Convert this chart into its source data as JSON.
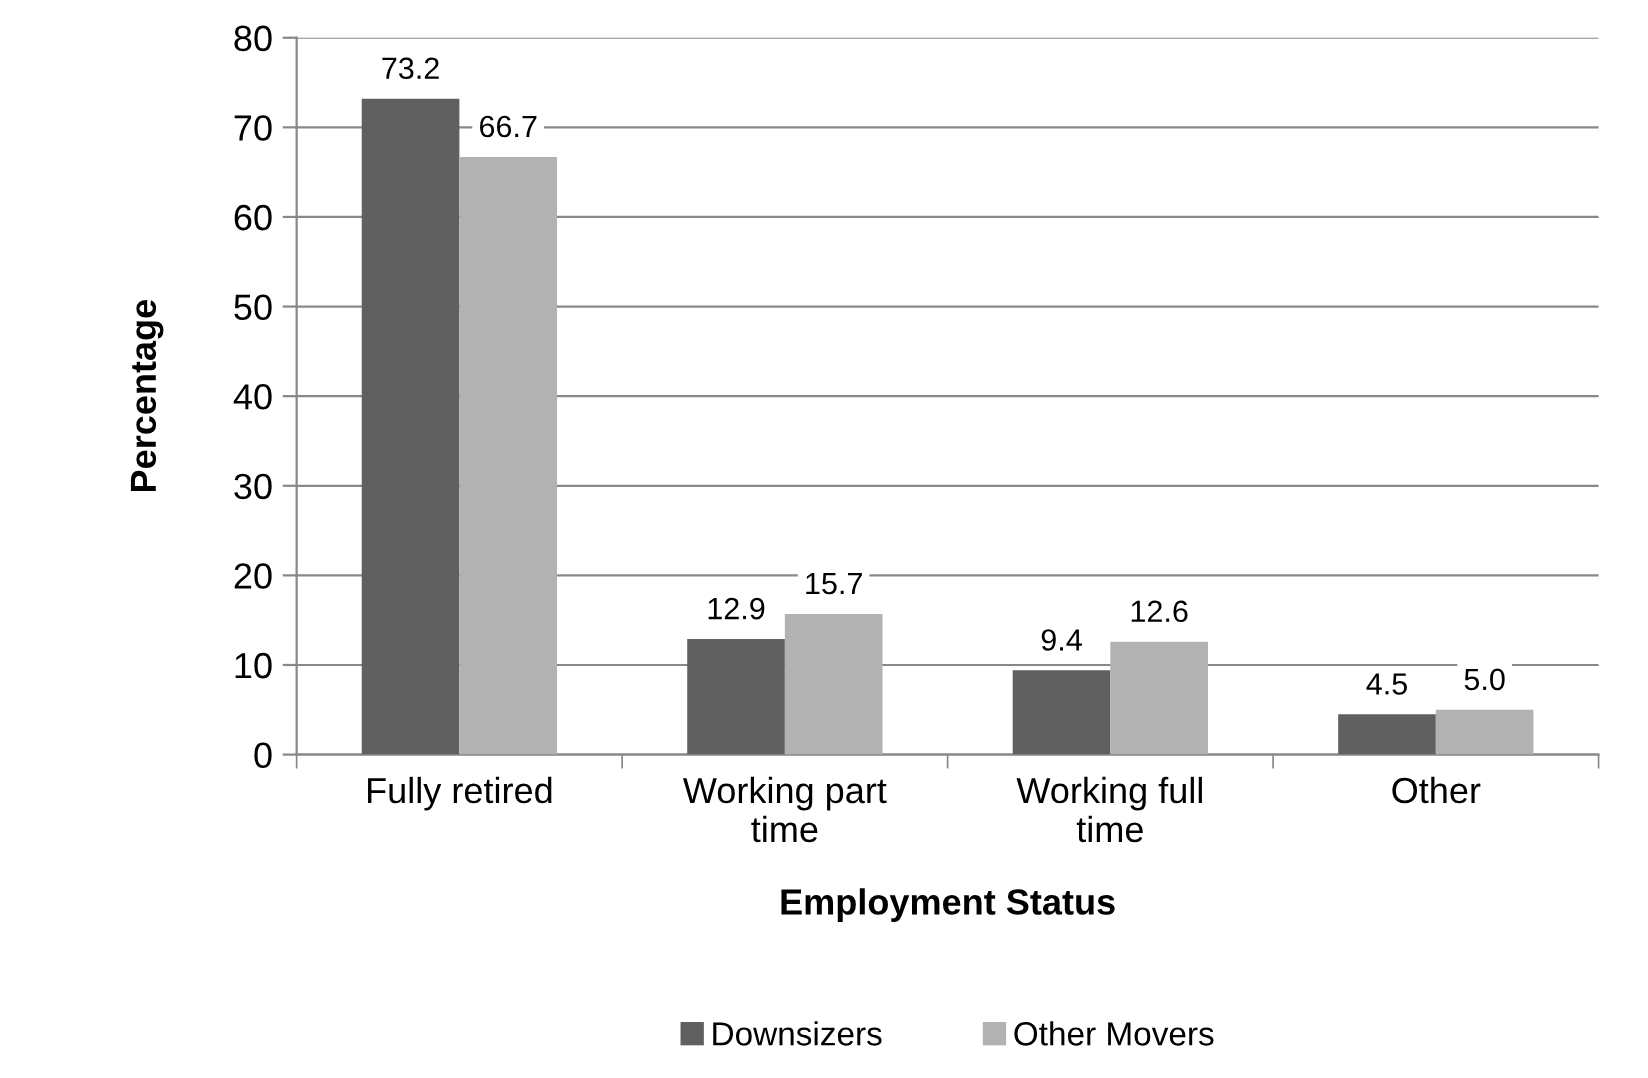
{
  "chart_data": {
    "type": "bar",
    "xlabel": "Employment Status",
    "ylabel": "Percentage",
    "categories": [
      "Fully retired",
      "Working part\ntime",
      "Working full\ntime",
      "Other"
    ],
    "series": [
      {
        "name": "Downsizers",
        "color": "#606060",
        "values": [
          73.2,
          12.9,
          9.4,
          4.5
        ],
        "value_labels": [
          "73.2",
          "12.9",
          "9.4",
          "4.5"
        ]
      },
      {
        "name": "Other Movers",
        "color": "#b2b2b2",
        "values": [
          66.7,
          15.7,
          12.6,
          5.0
        ],
        "value_labels": [
          "66.7",
          "15.7",
          "12.6",
          "5.0"
        ]
      }
    ],
    "ylim": [
      0,
      80
    ],
    "yticks": [
      0,
      10,
      20,
      30,
      40,
      50,
      60,
      70,
      80
    ],
    "grid": "y",
    "legend": "bottom"
  }
}
